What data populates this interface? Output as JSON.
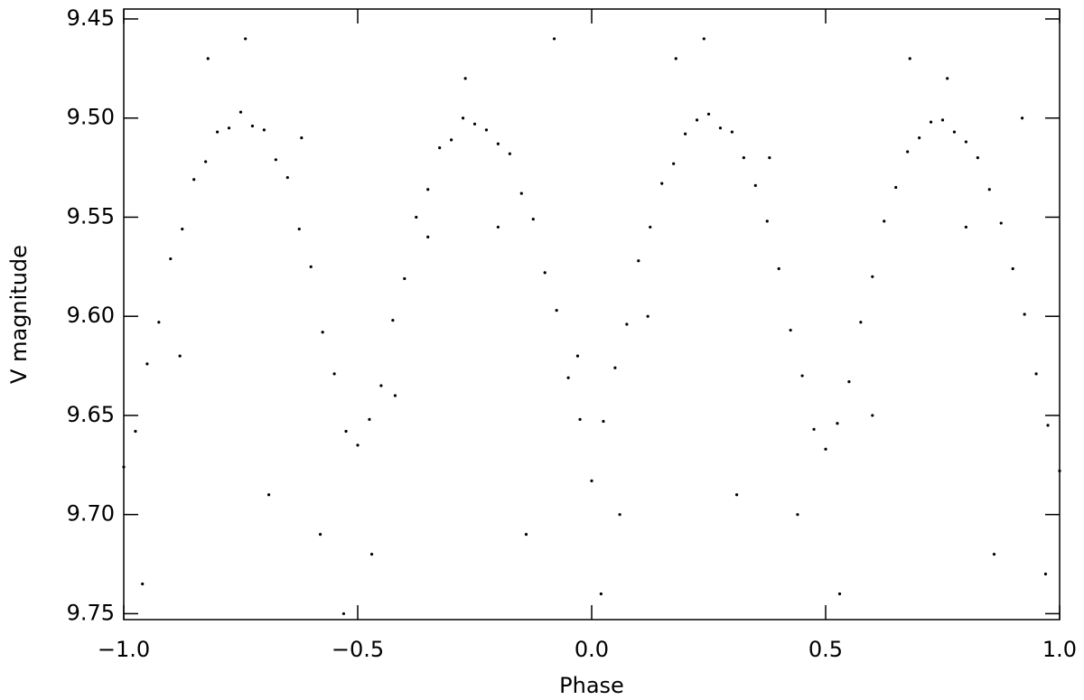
{
  "chart_data": {
    "type": "scatter",
    "xlabel": "Phase",
    "ylabel": "V magnitude",
    "xlim": [
      -1,
      1
    ],
    "ylim": [
      9.753,
      9.445
    ],
    "xticks": [
      {
        "value": -1,
        "label": "−1.0"
      },
      {
        "value": -0.5,
        "label": "−0.5"
      },
      {
        "value": 0,
        "label": "0.0"
      },
      0.5,
      {
        "value": 1,
        "label": "1.0"
      }
    ],
    "yticks": [
      9.45,
      {
        "value": 9.5,
        "label": "9.50"
      },
      9.55,
      {
        "value": 9.6,
        "label": "9.60"
      },
      9.65,
      {
        "value": 9.7,
        "label": "9.70"
      },
      9.75
    ],
    "color": "#000000",
    "x": [
      -1.0,
      -0.975,
      -0.95,
      -0.925,
      -0.9,
      -0.875,
      -0.85,
      -0.825,
      -0.8,
      -0.775,
      -0.75,
      -0.725,
      -0.7,
      -0.675,
      -0.65,
      -0.625,
      -0.6,
      -0.575,
      -0.55,
      -0.525,
      -0.5,
      -0.475,
      -0.45,
      -0.425,
      -0.4,
      -0.375,
      -0.35,
      -0.325,
      -0.3,
      -0.275,
      -0.25,
      -0.225,
      -0.2,
      -0.175,
      -0.15,
      -0.125,
      -0.1,
      -0.075,
      -0.05,
      -0.025,
      0.0,
      0.025,
      0.05,
      0.075,
      0.1,
      0.125,
      0.15,
      0.175,
      0.2,
      0.225,
      0.25,
      0.275,
      0.3,
      0.325,
      0.35,
      0.375,
      0.4,
      0.425,
      0.45,
      0.475,
      0.5,
      0.525,
      0.55,
      0.575,
      0.6,
      0.625,
      0.65,
      0.675,
      0.7,
      0.725,
      0.75,
      0.775,
      0.8,
      0.825,
      0.85,
      0.875,
      0.9,
      0.925,
      0.95,
      0.975,
      1.0,
      -0.96,
      -0.88,
      -0.82,
      -0.74,
      -0.69,
      -0.62,
      -0.58,
      -0.53,
      -0.47,
      -0.42,
      -0.35,
      -0.27,
      -0.2,
      -0.14,
      -0.08,
      -0.03,
      0.02,
      0.06,
      0.12,
      0.18,
      0.24,
      0.31,
      0.38,
      0.44,
      0.53,
      0.6,
      0.68,
      0.76,
      0.8,
      0.86,
      0.92,
      0.97
    ],
    "values": [
      9.676,
      9.658,
      9.624,
      9.603,
      9.571,
      9.556,
      9.531,
      9.522,
      9.507,
      9.505,
      9.497,
      9.504,
      9.506,
      9.521,
      9.53,
      9.556,
      9.575,
      9.608,
      9.629,
      9.658,
      9.665,
      9.652,
      9.635,
      9.602,
      9.581,
      9.55,
      9.536,
      9.515,
      9.511,
      9.5,
      9.503,
      9.506,
      9.513,
      9.518,
      9.538,
      9.551,
      9.578,
      9.597,
      9.631,
      9.652,
      9.683,
      9.653,
      9.626,
      9.604,
      9.572,
      9.555,
      9.533,
      9.523,
      9.508,
      9.501,
      9.498,
      9.505,
      9.507,
      9.52,
      9.534,
      9.552,
      9.576,
      9.607,
      9.63,
      9.657,
      9.667,
      9.654,
      9.633,
      9.603,
      9.58,
      9.552,
      9.535,
      9.517,
      9.51,
      9.502,
      9.501,
      9.507,
      9.512,
      9.52,
      9.536,
      9.553,
      9.576,
      9.599,
      9.629,
      9.655,
      9.678,
      9.735,
      9.62,
      9.47,
      9.46,
      9.69,
      9.51,
      9.71,
      9.75,
      9.72,
      9.64,
      9.56,
      9.48,
      9.555,
      9.71,
      9.46,
      9.62,
      9.74,
      9.7,
      9.6,
      9.47,
      9.46,
      9.69,
      9.52,
      9.7,
      9.74,
      9.65,
      9.47,
      9.48,
      9.555,
      9.72,
      9.5,
      9.73
    ]
  }
}
